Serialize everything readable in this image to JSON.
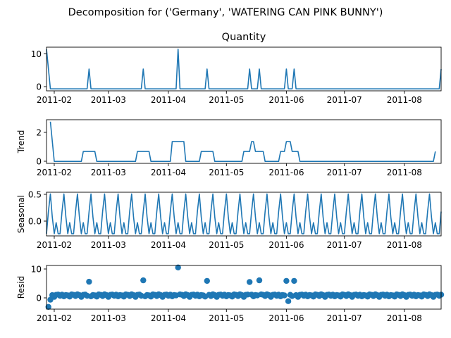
{
  "figure": {
    "suptitle": "Decomposition for ('Germany', 'WATERING CAN PINK BUNNY')"
  },
  "colors": {
    "series": "#1f77b4",
    "axes": "#000000",
    "background": "#ffffff"
  },
  "chart_data": [
    {
      "type": "line",
      "title": "Quantity",
      "ylabel": "",
      "x": [
        "2011-01-28",
        "2011-01-30",
        "2011-02-18",
        "2011-02-19",
        "2011-02-20",
        "2011-03-18",
        "2011-03-19",
        "2011-03-20",
        "2011-04-05",
        "2011-04-06",
        "2011-04-07",
        "2011-04-20",
        "2011-04-21",
        "2011-04-22",
        "2011-05-12",
        "2011-05-13",
        "2011-05-14",
        "2011-05-17",
        "2011-05-18",
        "2011-05-19",
        "2011-05-31",
        "2011-06-01",
        "2011-06-02",
        "2011-06-04",
        "2011-06-05",
        "2011-06-06",
        "2011-08-19",
        "2011-08-20"
      ],
      "values": [
        12,
        0,
        0,
        6,
        0,
        0,
        6,
        0,
        0,
        12,
        0,
        0,
        6,
        0,
        0,
        6,
        0,
        0,
        6,
        0,
        0,
        6,
        0,
        0,
        6,
        0,
        0,
        6
      ],
      "xlim": [
        "2011-01-28",
        "2011-08-20"
      ],
      "ylim": [
        -0.6,
        12.6
      ],
      "xticks": [
        "2011-02",
        "2011-03",
        "2011-04",
        "2011-05",
        "2011-06",
        "2011-07",
        "2011-08"
      ],
      "yticks": [
        "0",
        "10"
      ]
    },
    {
      "type": "line",
      "title": "",
      "ylabel": "Trend",
      "x": [
        "2011-01-30",
        "2011-02-01",
        "2011-02-15",
        "2011-02-16",
        "2011-02-22",
        "2011-02-23",
        "2011-03-15",
        "2011-03-16",
        "2011-03-22",
        "2011-03-23",
        "2011-04-02",
        "2011-04-03",
        "2011-04-09",
        "2011-04-10",
        "2011-04-17",
        "2011-04-18",
        "2011-04-24",
        "2011-04-25",
        "2011-05-09",
        "2011-05-10",
        "2011-05-13",
        "2011-05-14",
        "2011-05-15",
        "2011-05-16",
        "2011-05-20",
        "2011-05-21",
        "2011-05-28",
        "2011-05-29",
        "2011-05-31",
        "2011-06-01",
        "2011-06-03",
        "2011-06-04",
        "2011-06-07",
        "2011-06-08",
        "2011-08-16",
        "2011-08-17"
      ],
      "values": [
        3.43,
        0,
        0,
        0.86,
        0.86,
        0,
        0,
        0.86,
        0.86,
        0,
        0,
        1.71,
        1.71,
        0,
        0,
        0.86,
        0.86,
        0,
        0,
        0.86,
        0.86,
        1.71,
        1.71,
        0.86,
        0.86,
        0,
        0,
        0.86,
        0.86,
        1.71,
        1.71,
        0.86,
        0.86,
        0,
        0,
        0.86
      ],
      "xlim": [
        "2011-01-28",
        "2011-08-20"
      ],
      "ylim": [
        -0.17,
        3.6
      ],
      "xticks": [
        "2011-02",
        "2011-03",
        "2011-04",
        "2011-05",
        "2011-06",
        "2011-07",
        "2011-08"
      ],
      "yticks": [
        "0",
        "2"
      ]
    },
    {
      "type": "line",
      "title": "",
      "ylabel": "Seasonal",
      "period_days": 7,
      "pattern": [
        -0.25,
        0.15,
        0.47,
        0.05,
        -0.25,
        -0.05,
        -0.25
      ],
      "xlim": [
        "2011-01-28",
        "2011-08-20"
      ],
      "ylim": [
        -0.29,
        0.5
      ],
      "xticks": [
        "2011-02",
        "2011-03",
        "2011-04",
        "2011-05",
        "2011-06",
        "2011-07",
        "2011-08"
      ],
      "yticks": [
        "0.0",
        "0.5"
      ]
    },
    {
      "type": "scatter",
      "title": "",
      "ylabel": "Resid",
      "outliers": {
        "x": [
          "2011-01-29",
          "2011-01-30",
          "2011-02-19",
          "2011-03-19",
          "2011-04-06",
          "2011-04-21",
          "2011-05-13",
          "2011-05-18",
          "2011-06-01",
          "2011-06-02",
          "2011-06-05"
        ],
        "values": [
          -4,
          -1.5,
          4.8,
          5.3,
          9.8,
          5.1,
          4.7,
          5.3,
          5.1,
          -2,
          5.1
        ]
      },
      "baseline_pattern": [
        0.2,
        -0.2,
        0.4,
        0.1,
        -0.5,
        0.2,
        0.3,
        -0.1,
        0.25,
        -0.3,
        0.15,
        0.0,
        -0.4,
        0.35
      ],
      "xlim": [
        "2011-01-28",
        "2011-08-20"
      ],
      "ylim": [
        -4.8,
        10.5
      ],
      "xticks": [
        "2011-02",
        "2011-03",
        "2011-04",
        "2011-05",
        "2011-06",
        "2011-07",
        "2011-08"
      ],
      "yticks": [
        "0",
        "10"
      ]
    }
  ]
}
